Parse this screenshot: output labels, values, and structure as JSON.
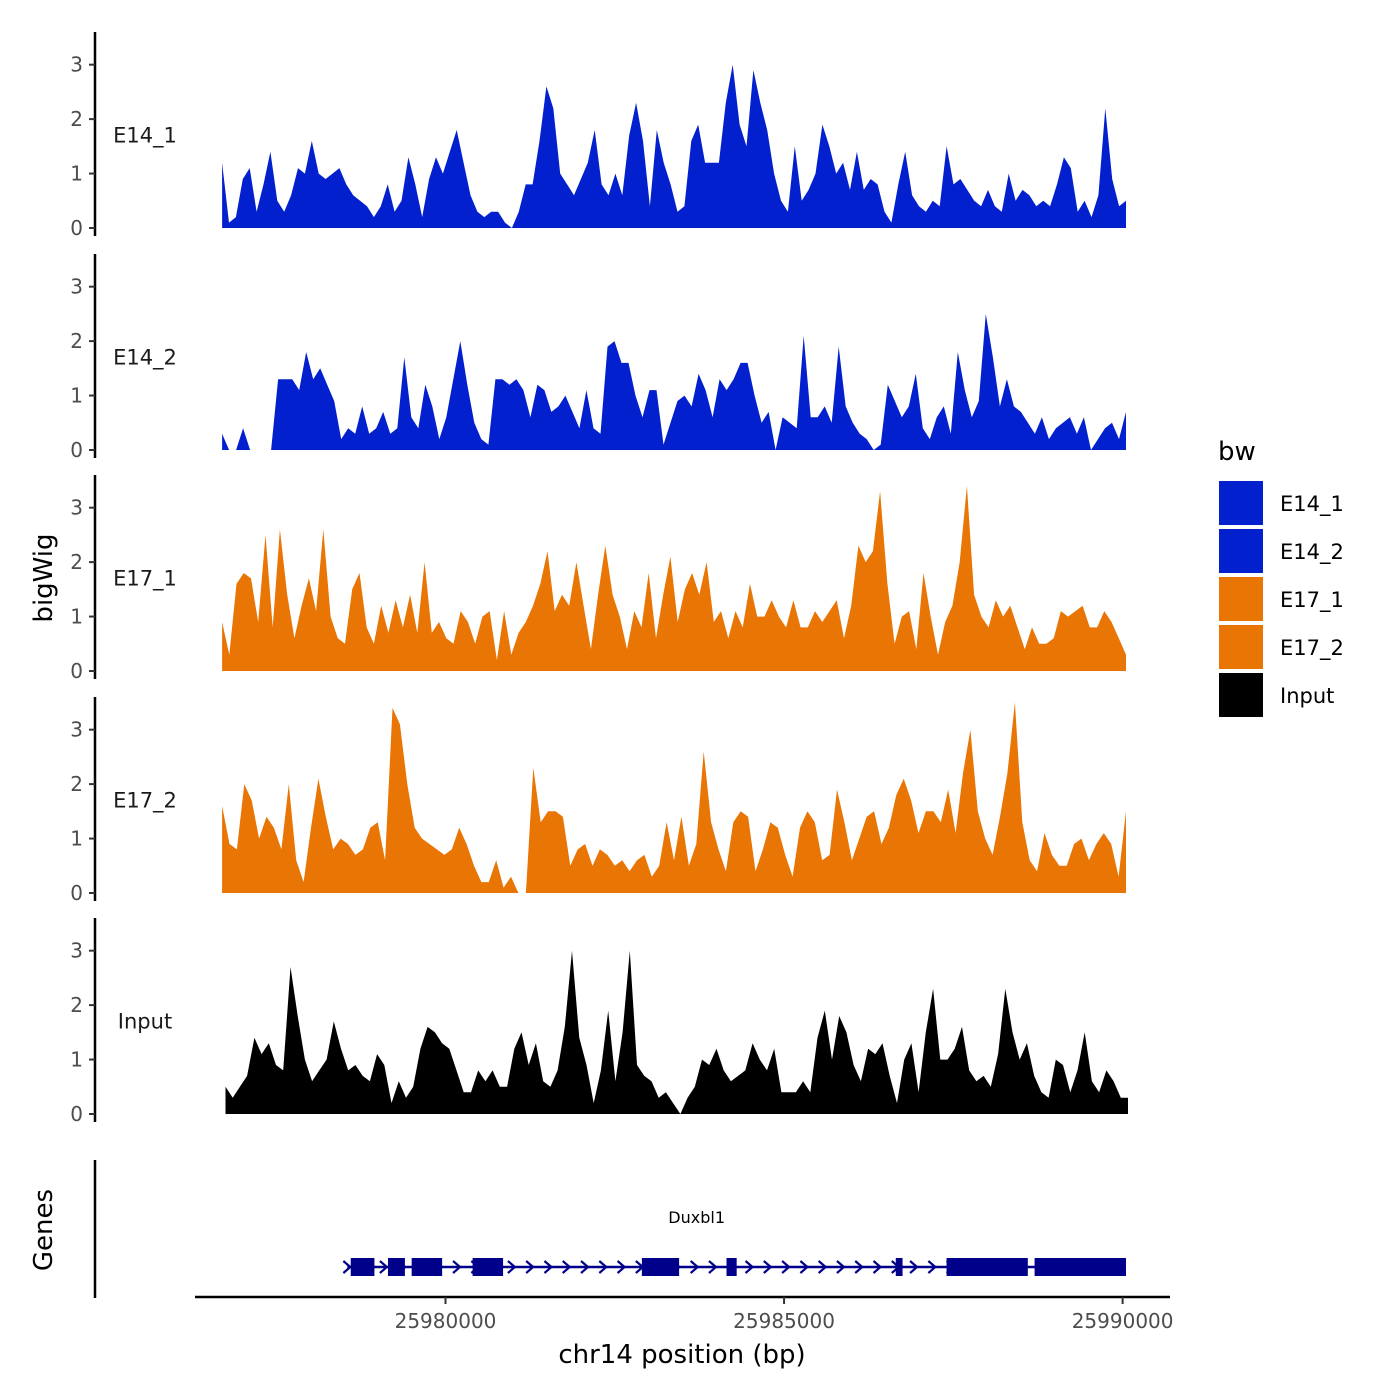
{
  "chart_data": {
    "type": "area",
    "xlabel": "chr14 position (bp)",
    "ylabel": "bigWig",
    "genes_label": "Genes",
    "xlim": [
      25976300,
      25990700
    ],
    "x_ticks": [
      25980000,
      25985000,
      25990000
    ],
    "x_tick_labels": [
      "25980000",
      "25985000",
      "25990000"
    ],
    "ylim": [
      0,
      3.6
    ],
    "y_ticks": [
      0,
      1,
      2,
      3
    ],
    "y_tick_labels": [
      "0",
      "1",
      "2",
      "3"
    ],
    "legend": {
      "title": "bw",
      "entries": [
        {
          "label": "E14_1",
          "color": "#0320CF"
        },
        {
          "label": "E14_2",
          "color": "#0320CF"
        },
        {
          "label": "E17_1",
          "color": "#E87504"
        },
        {
          "label": "E17_2",
          "color": "#E87504"
        },
        {
          "label": "Input",
          "color": "#000000"
        }
      ]
    },
    "series": [
      {
        "name": "E14_1",
        "color": "#0320CF",
        "x_start": 25976700,
        "x_end": 25990050,
        "values": [
          1.2,
          0.1,
          0.2,
          0.9,
          1.1,
          0.3,
          0.8,
          1.4,
          0.5,
          0.3,
          0.6,
          1.1,
          1.0,
          1.6,
          1.0,
          0.9,
          1.0,
          1.1,
          0.8,
          0.6,
          0.5,
          0.4,
          0.2,
          0.4,
          0.8,
          0.3,
          0.5,
          1.3,
          0.8,
          0.2,
          0.9,
          1.3,
          1.0,
          1.4,
          1.8,
          1.2,
          0.6,
          0.3,
          0.2,
          0.3,
          0.3,
          0.1,
          0.0,
          0.3,
          0.8,
          0.8,
          1.6,
          2.6,
          2.2,
          1.0,
          0.8,
          0.6,
          0.9,
          1.2,
          1.8,
          0.8,
          0.6,
          1.0,
          0.6,
          1.7,
          2.3,
          1.6,
          0.4,
          1.8,
          1.2,
          0.8,
          0.3,
          0.4,
          1.6,
          1.9,
          1.2,
          1.2,
          1.2,
          2.3,
          3.0,
          1.9,
          1.5,
          2.9,
          2.3,
          1.8,
          1.0,
          0.5,
          0.3,
          1.5,
          0.5,
          0.7,
          1.0,
          1.9,
          1.5,
          1.0,
          1.2,
          0.7,
          1.4,
          0.7,
          0.9,
          0.8,
          0.3,
          0.1,
          0.8,
          1.4,
          0.6,
          0.4,
          0.3,
          0.5,
          0.4,
          1.5,
          0.8,
          0.9,
          0.7,
          0.5,
          0.4,
          0.7,
          0.4,
          0.3,
          1.0,
          0.5,
          0.7,
          0.6,
          0.4,
          0.5,
          0.4,
          0.8,
          1.3,
          1.1,
          0.3,
          0.5,
          0.2,
          0.6,
          2.2,
          0.9,
          0.4,
          0.5
        ]
      },
      {
        "name": "E14_2",
        "color": "#0320CF",
        "x_start": 25976700,
        "x_end": 25990050,
        "values": [
          0.3,
          0.0,
          0.0,
          0.4,
          0.0,
          0.0,
          0.0,
          0.0,
          1.3,
          1.3,
          1.3,
          1.1,
          1.8,
          1.3,
          1.5,
          1.2,
          0.9,
          0.2,
          0.4,
          0.3,
          0.8,
          0.3,
          0.4,
          0.7,
          0.3,
          0.4,
          1.7,
          0.6,
          0.4,
          1.2,
          0.8,
          0.2,
          0.6,
          1.3,
          2.0,
          1.2,
          0.5,
          0.2,
          0.1,
          1.3,
          1.3,
          1.2,
          1.3,
          1.1,
          0.6,
          1.2,
          1.1,
          0.7,
          0.8,
          1.0,
          0.7,
          0.4,
          1.1,
          0.4,
          0.3,
          1.9,
          2.0,
          1.6,
          1.6,
          1.0,
          0.6,
          1.1,
          1.1,
          0.1,
          0.5,
          0.9,
          1.0,
          0.8,
          1.4,
          1.1,
          0.6,
          1.3,
          1.1,
          1.3,
          1.6,
          1.6,
          1.0,
          0.5,
          0.7,
          0.0,
          0.6,
          0.5,
          0.4,
          2.1,
          0.6,
          0.6,
          0.8,
          0.5,
          1.9,
          0.8,
          0.5,
          0.3,
          0.2,
          0.0,
          0.1,
          1.2,
          0.9,
          0.6,
          0.8,
          1.4,
          0.4,
          0.2,
          0.6,
          0.8,
          0.3,
          1.8,
          1.1,
          0.6,
          0.9,
          2.5,
          1.7,
          0.8,
          1.3,
          0.8,
          0.7,
          0.5,
          0.3,
          0.6,
          0.2,
          0.4,
          0.5,
          0.6,
          0.3,
          0.6,
          0.0,
          0.2,
          0.4,
          0.5,
          0.2,
          0.7
        ]
      },
      {
        "name": "E17_1",
        "color": "#E87504",
        "x_start": 25976700,
        "x_end": 25990050,
        "values": [
          0.9,
          0.3,
          1.6,
          1.8,
          1.7,
          0.9,
          2.5,
          0.8,
          2.6,
          1.4,
          0.6,
          1.2,
          1.7,
          1.1,
          2.6,
          1.0,
          0.6,
          0.5,
          1.5,
          1.8,
          0.8,
          0.5,
          1.2,
          0.7,
          1.3,
          0.8,
          1.4,
          0.7,
          2.0,
          0.7,
          0.9,
          0.6,
          0.5,
          1.1,
          0.9,
          0.5,
          1.0,
          1.1,
          0.2,
          1.1,
          0.3,
          0.7,
          0.9,
          1.2,
          1.6,
          2.2,
          1.1,
          1.4,
          1.2,
          2.0,
          1.2,
          0.4,
          1.4,
          2.3,
          1.4,
          1.0,
          0.4,
          1.1,
          0.8,
          1.8,
          0.6,
          1.4,
          2.1,
          0.9,
          1.5,
          1.8,
          1.4,
          2.0,
          0.9,
          1.1,
          0.6,
          1.1,
          0.8,
          1.6,
          1.0,
          1.0,
          1.3,
          1.0,
          0.8,
          1.3,
          0.8,
          0.8,
          1.1,
          0.9,
          1.1,
          1.3,
          0.6,
          1.2,
          2.3,
          2.0,
          2.2,
          3.3,
          1.6,
          0.5,
          1.0,
          1.1,
          0.4,
          1.8,
          1.0,
          0.3,
          0.9,
          1.2,
          2.0,
          3.4,
          1.4,
          1.0,
          0.8,
          1.3,
          1.0,
          1.2,
          0.8,
          0.4,
          0.8,
          0.5,
          0.5,
          0.6,
          1.1,
          1.0,
          1.1,
          1.2,
          0.8,
          0.8,
          1.1,
          0.9,
          0.6,
          0.3
        ]
      },
      {
        "name": "E17_2",
        "color": "#E87504",
        "x_start": 25976700,
        "x_end": 25990050,
        "values": [
          1.6,
          0.9,
          0.8,
          2.0,
          1.7,
          1.0,
          1.4,
          1.2,
          0.8,
          2.0,
          0.6,
          0.2,
          1.2,
          2.1,
          1.4,
          0.8,
          1.0,
          0.9,
          0.7,
          0.8,
          1.2,
          1.3,
          0.6,
          3.4,
          3.1,
          2.0,
          1.2,
          1.0,
          0.9,
          0.8,
          0.7,
          0.8,
          1.2,
          0.9,
          0.5,
          0.2,
          0.2,
          0.6,
          0.1,
          0.3,
          0.0,
          0.0,
          2.3,
          1.3,
          1.5,
          1.5,
          1.4,
          0.5,
          0.8,
          0.9,
          0.5,
          0.8,
          0.7,
          0.5,
          0.6,
          0.4,
          0.6,
          0.7,
          0.3,
          0.5,
          1.3,
          0.6,
          1.4,
          0.5,
          0.9,
          2.6,
          1.3,
          0.8,
          0.4,
          1.3,
          1.5,
          1.4,
          0.4,
          0.8,
          1.3,
          1.2,
          0.7,
          0.3,
          1.2,
          1.5,
          1.3,
          0.6,
          0.7,
          1.9,
          1.3,
          0.6,
          1.0,
          1.4,
          1.5,
          0.9,
          1.2,
          1.8,
          2.1,
          1.7,
          1.1,
          1.5,
          1.5,
          1.3,
          1.9,
          1.1,
          2.2,
          3.0,
          1.5,
          1.0,
          0.7,
          1.4,
          2.2,
          3.5,
          1.3,
          0.6,
          0.4,
          1.1,
          0.7,
          0.5,
          0.5,
          0.9,
          1.0,
          0.6,
          0.9,
          1.1,
          0.9,
          0.3,
          1.5
        ]
      },
      {
        "name": "Input",
        "color": "#000000",
        "x_start": 25976750,
        "x_end": 25990080,
        "values": [
          0.5,
          0.3,
          0.5,
          0.7,
          1.4,
          1.1,
          1.3,
          0.9,
          0.8,
          2.7,
          1.8,
          1.0,
          0.6,
          0.8,
          1.0,
          1.7,
          1.2,
          0.8,
          0.9,
          0.7,
          0.6,
          1.1,
          0.9,
          0.2,
          0.6,
          0.3,
          0.5,
          1.2,
          1.6,
          1.5,
          1.3,
          1.2,
          0.8,
          0.4,
          0.4,
          0.8,
          0.6,
          0.8,
          0.5,
          0.5,
          1.2,
          1.5,
          0.9,
          1.3,
          0.6,
          0.5,
          0.8,
          1.6,
          3.0,
          1.4,
          0.9,
          0.2,
          0.8,
          1.9,
          0.6,
          1.5,
          3.0,
          0.9,
          0.7,
          0.6,
          0.3,
          0.4,
          0.2,
          0.0,
          0.3,
          0.5,
          1.0,
          0.9,
          1.2,
          0.8,
          0.6,
          0.7,
          0.8,
          1.3,
          1.0,
          0.8,
          1.2,
          0.4,
          0.4,
          0.4,
          0.6,
          0.4,
          1.4,
          1.9,
          1.0,
          1.8,
          1.5,
          0.9,
          0.6,
          1.2,
          1.1,
          1.3,
          0.7,
          0.2,
          1.0,
          1.3,
          0.4,
          1.5,
          2.3,
          1.0,
          1.0,
          1.2,
          1.6,
          0.8,
          0.6,
          0.7,
          0.5,
          1.1,
          2.3,
          1.5,
          1.0,
          1.3,
          0.7,
          0.4,
          0.3,
          1.0,
          0.9,
          0.4,
          0.8,
          1.5,
          0.6,
          0.4,
          0.8,
          0.6,
          0.3,
          0.3
        ]
      }
    ],
    "gene_track": {
      "name": "Duxbl1",
      "color": "#00008B",
      "start": 25978550,
      "end": 25990050,
      "exons": [
        [
          25978600,
          25978950
        ],
        [
          25979150,
          25979400
        ],
        [
          25979500,
          25979950
        ],
        [
          25980400,
          25980850
        ],
        [
          25982900,
          25983450
        ],
        [
          25984150,
          25984300
        ],
        [
          25986650,
          25986750
        ],
        [
          25987400,
          25988600
        ],
        [
          25988700,
          25990050
        ]
      ]
    }
  }
}
